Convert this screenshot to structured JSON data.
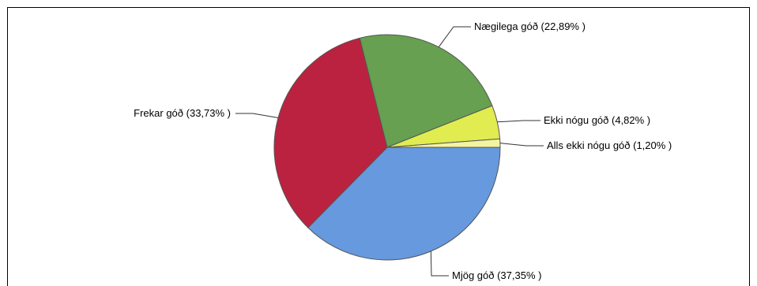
{
  "chart_data": {
    "type": "pie",
    "start_angle_deg": 0,
    "direction": "counterclockwise",
    "slices": [
      {
        "label": "Mjög góð (37,35% )",
        "value": 37.35,
        "color": "#6699dd"
      },
      {
        "label": "Frekar góð (33,73% )",
        "value": 33.73,
        "color": "#bb2240"
      },
      {
        "label": "Nægilega góð (22,89% )",
        "value": 22.89,
        "color": "#66a050"
      },
      {
        "label": "Ekki nógu góð (4,82% )",
        "value": 4.82,
        "color": "#e0ec50"
      },
      {
        "label": "Alls ekki nógu góð (1,20% )",
        "value": 1.2,
        "color": "#f4f4a0"
      }
    ],
    "legend": "none"
  }
}
